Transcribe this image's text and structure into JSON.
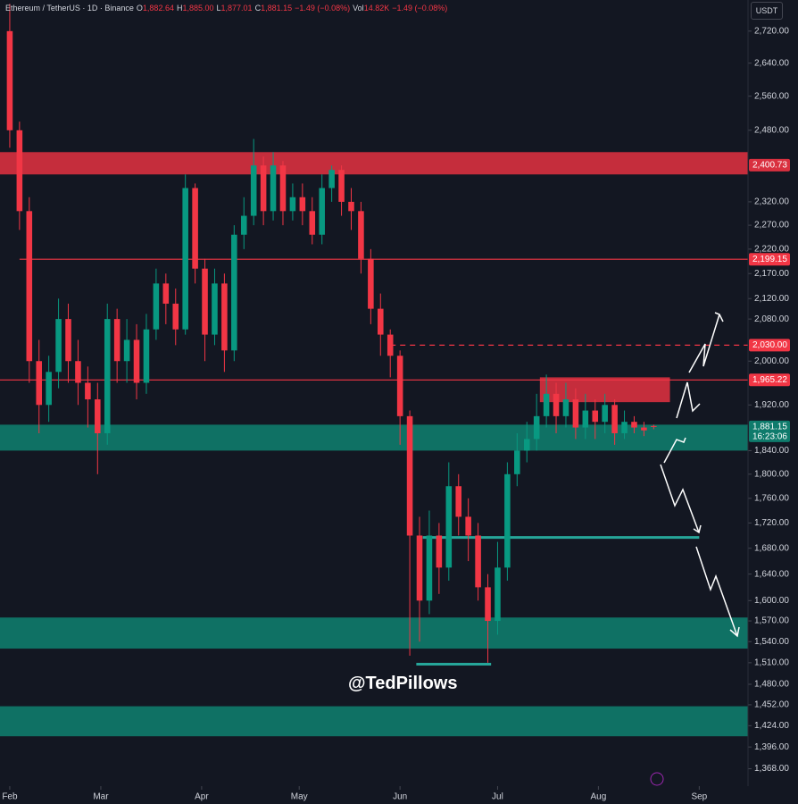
{
  "chart_data": {
    "type": "candlestick",
    "title": "Ethereum / TetherUS · 1D · Binance",
    "ohlc_header": [
      {
        "label": "O",
        "value": "1,882.64"
      },
      {
        "label": "H",
        "value": "1,885.00"
      },
      {
        "label": "L",
        "value": "1,877.01"
      },
      {
        "label": "C",
        "value": "1,881.15"
      },
      {
        "label": "",
        "value": "−1.49 (−0.08%)"
      },
      {
        "label": "Vol",
        "value": "14.82K"
      },
      {
        "label": "",
        "value": "−1.49 (−0.08%)"
      }
    ],
    "currency": "USDT",
    "watermark": "@TedPillows",
    "up_color": "#089981",
    "down_color": "#f23645",
    "log_scale": true,
    "xlim": [
      -3,
      227
    ],
    "ylim": [
      1346,
      2800
    ],
    "xticks": [
      {
        "value": 0,
        "label": "Feb"
      },
      {
        "value": 28,
        "label": "Mar"
      },
      {
        "value": 59,
        "label": "Apr"
      },
      {
        "value": 89,
        "label": "May"
      },
      {
        "value": 120,
        "label": "Jun"
      },
      {
        "value": 150,
        "label": "Jul"
      },
      {
        "value": 181,
        "label": "Aug"
      },
      {
        "value": 212,
        "label": "Sep"
      }
    ],
    "yticks": [
      {
        "value": 2720,
        "label": "2,720.00"
      },
      {
        "value": 2640,
        "label": "2,640.00"
      },
      {
        "value": 2560,
        "label": "2,560.00"
      },
      {
        "value": 2480,
        "label": "2,480.00"
      },
      {
        "value": 2320,
        "label": "2,320.00"
      },
      {
        "value": 2270,
        "label": "2,270.00"
      },
      {
        "value": 2220,
        "label": "2,220.00"
      },
      {
        "value": 2170,
        "label": "2,170.00"
      },
      {
        "value": 2120,
        "label": "2,120.00"
      },
      {
        "value": 2080,
        "label": "2,080.00"
      },
      {
        "value": 2000,
        "label": "2,000.00"
      },
      {
        "value": 1920,
        "label": "1,920.00"
      },
      {
        "value": 1840,
        "label": "1,840.00"
      },
      {
        "value": 1800,
        "label": "1,800.00"
      },
      {
        "value": 1760,
        "label": "1,760.00"
      },
      {
        "value": 1720,
        "label": "1,720.00"
      },
      {
        "value": 1680,
        "label": "1,680.00"
      },
      {
        "value": 1640,
        "label": "1,640.00"
      },
      {
        "value": 1600,
        "label": "1,600.00"
      },
      {
        "value": 1570,
        "label": "1,570.00"
      },
      {
        "value": 1540,
        "label": "1,540.00"
      },
      {
        "value": 1510,
        "label": "1,510.00"
      },
      {
        "value": 1480,
        "label": "1,480.00"
      },
      {
        "value": 1452,
        "label": "1,452.00"
      },
      {
        "value": 1424,
        "label": "1,424.00"
      },
      {
        "value": 1396,
        "label": "1,396.00"
      },
      {
        "value": 1368,
        "label": "1,368.00"
      }
    ],
    "x": [
      0,
      3,
      6,
      9,
      12,
      15,
      18,
      21,
      24,
      27,
      30,
      33,
      36,
      39,
      42,
      45,
      48,
      51,
      54,
      57,
      60,
      63,
      66,
      69,
      72,
      75,
      78,
      81,
      84,
      87,
      90,
      93,
      96,
      99,
      102,
      105,
      108,
      111,
      114,
      117,
      120,
      123,
      126,
      129,
      132,
      135,
      138,
      141,
      144,
      147,
      150,
      153,
      156,
      159,
      162,
      165,
      168,
      171,
      174,
      177,
      180,
      183,
      186,
      189,
      192,
      195,
      198
    ],
    "open": [
      2720,
      2480,
      2300,
      2000,
      1920,
      1980,
      2080,
      2000,
      1960,
      1930,
      1870,
      2080,
      2000,
      2040,
      1960,
      2060,
      2150,
      2110,
      2060,
      2350,
      2180,
      2050,
      2150,
      2020,
      2250,
      2290,
      2400,
      2300,
      2400,
      2300,
      2330,
      2300,
      2250,
      2350,
      2390,
      2320,
      2300,
      2200,
      2100,
      2050,
      2010,
      1900,
      1700,
      1600,
      1700,
      1650,
      1780,
      1730,
      1700,
      1620,
      1570,
      1650,
      1800,
      1840,
      1860,
      1900,
      1940,
      1900,
      1930,
      1880,
      1910,
      1890,
      1920,
      1870,
      1890,
      1880,
      1882.64
    ],
    "high": [
      2790,
      2500,
      2330,
      2040,
      2010,
      2120,
      2110,
      2040,
      1990,
      1960,
      2110,
      2100,
      2080,
      2070,
      2090,
      2180,
      2170,
      2140,
      2380,
      2360,
      2200,
      2180,
      2170,
      2270,
      2330,
      2460,
      2420,
      2430,
      2410,
      2360,
      2360,
      2330,
      2380,
      2400,
      2400,
      2350,
      2320,
      2220,
      2130,
      2060,
      2020,
      1910,
      1730,
      1740,
      1720,
      1820,
      1800,
      1760,
      1720,
      1640,
      1690,
      1820,
      1870,
      1890,
      1940,
      1975,
      1960,
      1960,
      1950,
      1940,
      1930,
      1940,
      1930,
      1910,
      1900,
      1890,
      1885
    ],
    "low": [
      2440,
      2260,
      1960,
      1870,
      1890,
      1950,
      1960,
      1920,
      1880,
      1800,
      1850,
      1960,
      1960,
      1930,
      1940,
      2040,
      2070,
      2030,
      2050,
      2150,
      2000,
      2030,
      1980,
      2000,
      2220,
      2270,
      2270,
      2280,
      2270,
      2280,
      2270,
      2230,
      2230,
      2320,
      2290,
      2260,
      2170,
      2070,
      2010,
      1970,
      1850,
      1520,
      1540,
      1580,
      1610,
      1630,
      1700,
      1660,
      1600,
      1510,
      1550,
      1630,
      1780,
      1820,
      1840,
      1880,
      1870,
      1880,
      1860,
      1860,
      1860,
      1870,
      1850,
      1860,
      1870,
      1865,
      1877.01
    ],
    "close": [
      2480,
      2300,
      2000,
      1920,
      1980,
      2080,
      2000,
      1960,
      1930,
      1870,
      2080,
      2000,
      2040,
      1960,
      2060,
      2150,
      2110,
      2060,
      2350,
      2180,
      2050,
      2150,
      2020,
      2250,
      2290,
      2400,
      2300,
      2400,
      2300,
      2330,
      2300,
      2250,
      2350,
      2390,
      2320,
      2300,
      2200,
      2100,
      2050,
      2010,
      1900,
      1700,
      1600,
      1700,
      1650,
      1780,
      1730,
      1700,
      1620,
      1570,
      1650,
      1800,
      1840,
      1860,
      1900,
      1940,
      1900,
      1930,
      1880,
      1910,
      1890,
      1920,
      1870,
      1890,
      1880,
      1875,
      1881.15
    ],
    "zones": [
      {
        "color": "#d9303f",
        "low": 2380,
        "high": 2430,
        "x_start": -3,
        "x_end": 227
      },
      {
        "color": "#d9303f",
        "low": 1925,
        "high": 1970,
        "x_start": 163,
        "x_end": 203
      },
      {
        "color": "#0f7b6c",
        "low": 1840,
        "high": 1885,
        "x_start": -3,
        "x_end": 227
      },
      {
        "color": "#0f7b6c",
        "low": 1530,
        "high": 1575,
        "x_start": -3,
        "x_end": 227
      },
      {
        "color": "#0f7b6c",
        "low": 1410,
        "high": 1450,
        "x_start": -3,
        "x_end": 227
      }
    ],
    "levels": [
      {
        "value": 2199.15,
        "color": "#f23645",
        "dashed": false,
        "x_start": 3,
        "x_end": 227
      },
      {
        "value": 2030,
        "color": "#f23645",
        "dashed": true,
        "x_start": 117,
        "x_end": 227
      },
      {
        "value": 1965.22,
        "color": "#f23645",
        "dashed": false,
        "x_start": -3,
        "x_end": 227
      },
      {
        "value": 1697,
        "color": "#26a69a",
        "dashed": false,
        "x_start": 127,
        "x_end": 212
      },
      {
        "value": 1508,
        "color": "#26a69a",
        "dashed": false,
        "x_start": 125,
        "x_end": 148
      }
    ],
    "price_labels": [
      {
        "value": 2400.73,
        "label": "2,400.73",
        "color": "#d9303f"
      },
      {
        "value": 2199.15,
        "label": "2,199.15",
        "color": "#f23645"
      },
      {
        "value": 2030,
        "label": "2,030.00",
        "color": "#f23645"
      },
      {
        "value": 1965.22,
        "label": "1,965.22",
        "color": "#f23645"
      },
      {
        "value": 1881.15,
        "label": "1,881.15",
        "sublabel": "16:23:06",
        "color": "#0f7b6c"
      }
    ]
  }
}
